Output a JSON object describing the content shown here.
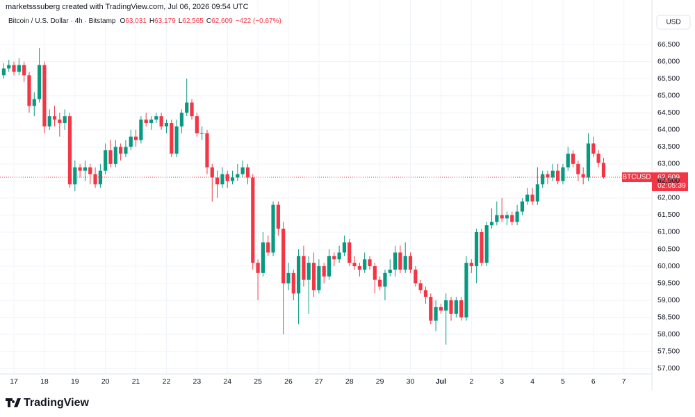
{
  "chart_data": {
    "type": "candlestick",
    "credit": "marketsssuberg created with TradingView.com, Jul 06, 2026 09:54 UTC",
    "symbol_title": "Bitcoin / U.S. Dollar · 4h · Bitstamp",
    "header_ohlc": [
      {
        "key": "O",
        "text": "63,031"
      },
      {
        "key": "H",
        "text": "63,179"
      },
      {
        "key": "L",
        "text": "62,565"
      },
      {
        "key": "C",
        "text": "62,609"
      }
    ],
    "header_change": "−422 (−0.67%)",
    "currency": "USD",
    "ticker": "BTCUSD",
    "last_price_label": "62,609",
    "countdown": "02:05:39",
    "brand": "TradingView",
    "up_color": "#089981",
    "down_color": "#f23645",
    "grid": true,
    "ylim": [
      56800,
      67400
    ],
    "xlim": [
      -0.74,
      127.1
    ],
    "yticks": [
      {
        "value": 57000,
        "label": "57,000"
      },
      {
        "value": 57500,
        "label": "57,500"
      },
      {
        "value": 58000,
        "label": "58,000"
      },
      {
        "value": 58500,
        "label": "58,500"
      },
      {
        "value": 59000,
        "label": "59,000"
      },
      {
        "value": 59500,
        "label": "59,500"
      },
      {
        "value": 60000,
        "label": "60,000"
      },
      {
        "value": 60500,
        "label": "60,500"
      },
      {
        "value": 61000,
        "label": "61,000"
      },
      {
        "value": 61500,
        "label": "61,500"
      },
      {
        "value": 62000,
        "label": "62,000"
      },
      {
        "value": 62500,
        "label": "62,500"
      },
      {
        "value": 63000,
        "label": "63,000"
      },
      {
        "value": 63500,
        "label": "63,500"
      },
      {
        "value": 64000,
        "label": "64,000"
      },
      {
        "value": 64500,
        "label": "64,500"
      },
      {
        "value": 65000,
        "label": "65,000"
      },
      {
        "value": 65500,
        "label": "65,500"
      },
      {
        "value": 66000,
        "label": "66,000"
      },
      {
        "value": 66500,
        "label": "66,500"
      }
    ],
    "xticks": [
      {
        "value": 2,
        "label": "17"
      },
      {
        "value": 8,
        "label": "18"
      },
      {
        "value": 14,
        "label": "19"
      },
      {
        "value": 20,
        "label": "20"
      },
      {
        "value": 26,
        "label": "21"
      },
      {
        "value": 32,
        "label": "22"
      },
      {
        "value": 38,
        "label": "23"
      },
      {
        "value": 44,
        "label": "24"
      },
      {
        "value": 50,
        "label": "25"
      },
      {
        "value": 56,
        "label": "26"
      },
      {
        "value": 62,
        "label": "27"
      },
      {
        "value": 68,
        "label": "28"
      },
      {
        "value": 74,
        "label": "29"
      },
      {
        "value": 80,
        "label": "30"
      },
      {
        "value": 86,
        "label": "Jul"
      },
      {
        "value": 92,
        "label": "2"
      },
      {
        "value": 98,
        "label": "3"
      },
      {
        "value": 104,
        "label": "4"
      },
      {
        "value": 110,
        "label": "5"
      },
      {
        "value": 116,
        "label": "6"
      },
      {
        "value": 122,
        "label": "7"
      }
    ],
    "ohlc": [
      [
        65600,
        65950,
        65500,
        65800
      ],
      [
        65800,
        66050,
        65700,
        65900
      ],
      [
        65900,
        66000,
        65600,
        65700
      ],
      [
        65700,
        66100,
        65600,
        65900
      ],
      [
        65900,
        66000,
        65400,
        65600
      ],
      [
        65600,
        65700,
        64500,
        64700
      ],
      [
        64700,
        65100,
        64400,
        64900
      ],
      [
        64900,
        66400,
        64800,
        65900
      ],
      [
        65900,
        66000,
        63900,
        64100
      ],
      [
        64100,
        64600,
        64000,
        64400
      ],
      [
        64400,
        64700,
        64100,
        64300
      ],
      [
        64300,
        64500,
        63800,
        64200
      ],
      [
        64200,
        64600,
        64000,
        64400
      ],
      [
        64400,
        64500,
        62300,
        62400
      ],
      [
        62400,
        63100,
        62200,
        62900
      ],
      [
        62900,
        63000,
        62600,
        62800
      ],
      [
        62800,
        63100,
        62500,
        62900
      ],
      [
        62900,
        63000,
        62400,
        62700
      ],
      [
        62700,
        62900,
        62300,
        62400
      ],
      [
        62400,
        63000,
        62300,
        62800
      ],
      [
        62800,
        63600,
        62700,
        63400
      ],
      [
        63400,
        63700,
        62900,
        63000
      ],
      [
        63000,
        63700,
        62900,
        63500
      ],
      [
        63500,
        63600,
        63100,
        63300
      ],
      [
        63300,
        63700,
        63200,
        63500
      ],
      [
        63500,
        64000,
        63400,
        63800
      ],
      [
        63800,
        64000,
        63500,
        63700
      ],
      [
        63700,
        64400,
        63600,
        64300
      ],
      [
        64300,
        64500,
        64100,
        64200
      ],
      [
        64200,
        64400,
        64000,
        64300
      ],
      [
        64300,
        64500,
        64200,
        64400
      ],
      [
        64400,
        64500,
        64000,
        64100
      ],
      [
        64100,
        64300,
        63900,
        64200
      ],
      [
        64200,
        64300,
        63200,
        63300
      ],
      [
        63300,
        64300,
        63200,
        64100
      ],
      [
        64100,
        64600,
        63900,
        64500
      ],
      [
        64500,
        65500,
        64400,
        64800
      ],
      [
        64800,
        64900,
        64300,
        64400
      ],
      [
        64400,
        64500,
        63800,
        63900
      ],
      [
        63900,
        64100,
        63700,
        63900
      ],
      [
        63900,
        64000,
        62700,
        62900
      ],
      [
        62900,
        63000,
        61900,
        62600
      ],
      [
        62600,
        62800,
        62000,
        62400
      ],
      [
        62400,
        62900,
        62300,
        62700
      ],
      [
        62700,
        62800,
        62300,
        62500
      ],
      [
        62500,
        62800,
        62400,
        62600
      ],
      [
        62600,
        63000,
        62500,
        62700
      ],
      [
        62700,
        63100,
        62600,
        62900
      ],
      [
        62900,
        63000,
        62400,
        62600
      ],
      [
        62600,
        62700,
        59900,
        60100
      ],
      [
        60100,
        60200,
        59000,
        59800
      ],
      [
        59800,
        61000,
        59700,
        60700
      ],
      [
        60700,
        60900,
        60300,
        60400
      ],
      [
        60400,
        61900,
        60300,
        61800
      ],
      [
        61800,
        61900,
        60900,
        61100
      ],
      [
        61100,
        61300,
        58000,
        59500
      ],
      [
        59500,
        60100,
        59300,
        59800
      ],
      [
        59800,
        59900,
        59000,
        59200
      ],
      [
        59200,
        60500,
        58300,
        60300
      ],
      [
        60300,
        60600,
        59400,
        59600
      ],
      [
        59600,
        60300,
        58600,
        60100
      ],
      [
        60100,
        60400,
        59100,
        59300
      ],
      [
        59300,
        60200,
        59200,
        60000
      ],
      [
        60000,
        60100,
        59500,
        59700
      ],
      [
        59700,
        60500,
        59600,
        60300
      ],
      [
        60300,
        60400,
        60000,
        60200
      ],
      [
        60200,
        60600,
        60100,
        60400
      ],
      [
        60400,
        60900,
        60300,
        60700
      ],
      [
        60700,
        60800,
        60000,
        60100
      ],
      [
        60100,
        60300,
        59900,
        60000
      ],
      [
        60000,
        60100,
        59700,
        59900
      ],
      [
        59900,
        60400,
        59800,
        60200
      ],
      [
        60200,
        60300,
        59900,
        60000
      ],
      [
        60000,
        60100,
        59200,
        59600
      ],
      [
        59600,
        59700,
        59300,
        59400
      ],
      [
        59400,
        59900,
        59000,
        59800
      ],
      [
        59800,
        60200,
        59700,
        59900
      ],
      [
        59900,
        60600,
        59700,
        60400
      ],
      [
        60400,
        60600,
        59800,
        59900
      ],
      [
        59900,
        60700,
        59800,
        60300
      ],
      [
        60300,
        60400,
        59800,
        59900
      ],
      [
        59900,
        60000,
        59400,
        59500
      ],
      [
        59500,
        59600,
        59200,
        59300
      ],
      [
        59300,
        59400,
        58900,
        59100
      ],
      [
        59100,
        59200,
        58300,
        58400
      ],
      [
        58400,
        59000,
        58100,
        58800
      ],
      [
        58800,
        58900,
        58600,
        58700
      ],
      [
        58700,
        59200,
        57700,
        59000
      ],
      [
        59000,
        59100,
        58400,
        58600
      ],
      [
        58600,
        59100,
        58500,
        59000
      ],
      [
        59000,
        59100,
        58400,
        58500
      ],
      [
        58500,
        60300,
        58400,
        60100
      ],
      [
        60100,
        60200,
        59800,
        60000
      ],
      [
        60000,
        61100,
        59500,
        61000
      ],
      [
        61000,
        61100,
        60000,
        60100
      ],
      [
        60100,
        61300,
        60000,
        61200
      ],
      [
        61200,
        61700,
        61100,
        61300
      ],
      [
        61300,
        61900,
        61200,
        61500
      ],
      [
        61500,
        62000,
        61300,
        61400
      ],
      [
        61400,
        61600,
        61200,
        61500
      ],
      [
        61500,
        61600,
        61200,
        61300
      ],
      [
        61300,
        61800,
        61200,
        61600
      ],
      [
        61600,
        62000,
        61500,
        61900
      ],
      [
        61900,
        62300,
        61800,
        62100
      ],
      [
        62100,
        62300,
        61800,
        61900
      ],
      [
        61900,
        62900,
        61800,
        62400
      ],
      [
        62400,
        62800,
        62300,
        62700
      ],
      [
        62700,
        62800,
        62400,
        62600
      ],
      [
        62600,
        63000,
        62500,
        62800
      ],
      [
        62800,
        63000,
        62400,
        62500
      ],
      [
        62500,
        63000,
        62400,
        62900
      ],
      [
        62900,
        63500,
        62800,
        63300
      ],
      [
        63300,
        63400,
        62900,
        63000
      ],
      [
        63000,
        63100,
        62500,
        62700
      ],
      [
        62700,
        62900,
        62400,
        62600
      ],
      [
        62600,
        63900,
        62500,
        63600
      ],
      [
        63600,
        63800,
        63200,
        63300
      ],
      [
        63300,
        63400,
        62900,
        63031
      ],
      [
        63031,
        63179,
        62565,
        62609
      ]
    ]
  }
}
